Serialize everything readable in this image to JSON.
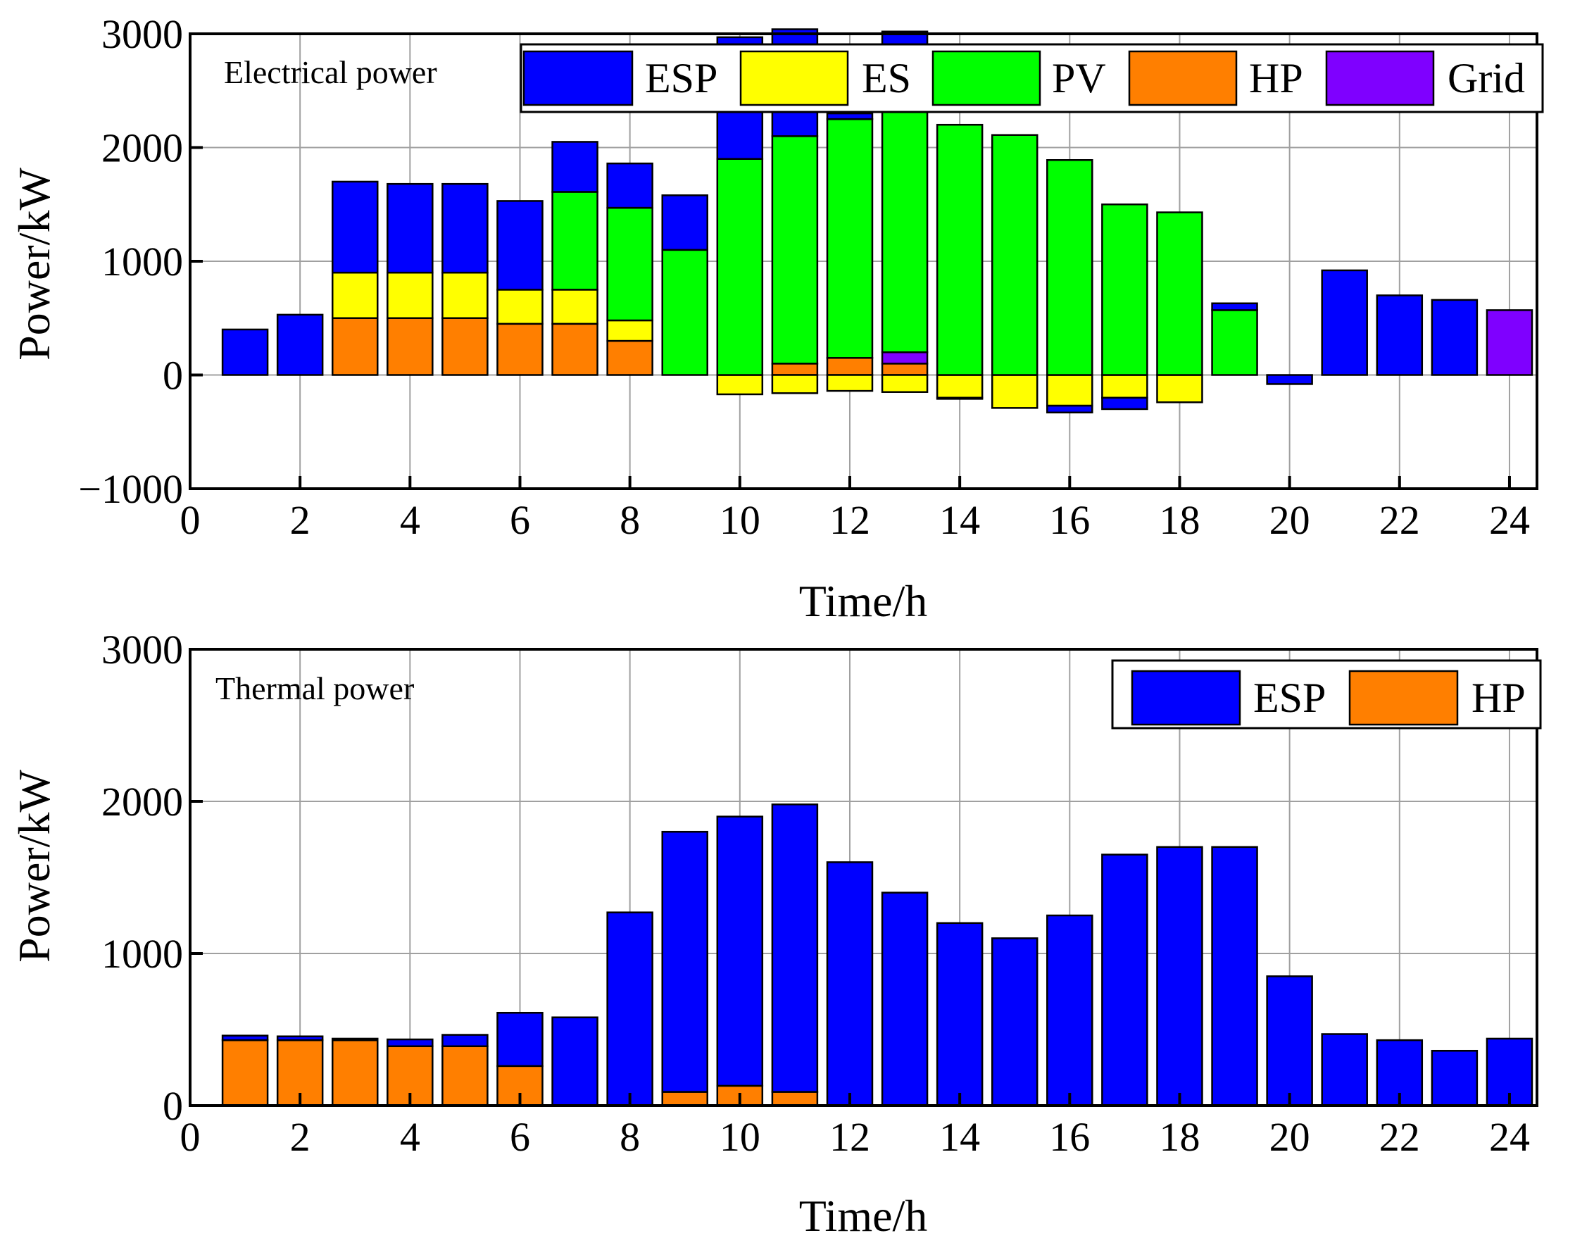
{
  "colors": {
    "ESP": "#0000ff",
    "ES": "#ffff00",
    "PV": "#00ff00",
    "HP": "#ff7f00",
    "Grid": "#7f00ff"
  },
  "chart_data": [
    {
      "type": "bar",
      "stacked": true,
      "title": "Electrical power",
      "xlabel": "Time/h",
      "ylabel": "Power/kW",
      "xlim": [
        0,
        24.5
      ],
      "ylim": [
        -1000,
        3000
      ],
      "xticks": [
        0,
        2,
        4,
        6,
        8,
        10,
        12,
        14,
        16,
        18,
        20,
        22,
        24
      ],
      "xtick_labels": [
        "0",
        "2",
        "4",
        "6",
        "8",
        "10",
        "12",
        "14",
        "16",
        "18",
        "20",
        "22",
        "24"
      ],
      "yticks": [
        -1000,
        0,
        1000,
        2000,
        3000
      ],
      "ytick_labels": [
        "−1000",
        "0",
        "1000",
        "2000",
        "3000"
      ],
      "grid": true,
      "legend_position": "top-right",
      "legend": [
        "ESP",
        "ES",
        "PV",
        "HP",
        "Grid"
      ],
      "x": [
        1,
        2,
        3,
        4,
        5,
        6,
        7,
        8,
        9,
        10,
        11,
        12,
        13,
        14,
        15,
        16,
        17,
        18,
        19,
        20,
        21,
        22,
        23,
        24
      ],
      "series": [
        {
          "name": "HP",
          "values": [
            0,
            0,
            500,
            500,
            500,
            450,
            450,
            300,
            0,
            0,
            100,
            150,
            100,
            0,
            0,
            0,
            0,
            0,
            0,
            0,
            0,
            0,
            0,
            0
          ]
        },
        {
          "name": "Grid",
          "values": [
            0,
            0,
            0,
            0,
            0,
            0,
            0,
            0,
            0,
            0,
            0,
            0,
            100,
            0,
            0,
            0,
            0,
            0,
            0,
            0,
            0,
            0,
            0,
            570
          ]
        },
        {
          "name": "ES",
          "values": [
            0,
            0,
            400,
            400,
            400,
            300,
            300,
            180,
            0,
            -170,
            -160,
            -140,
            -150,
            -200,
            -290,
            -270,
            -200,
            -240,
            0,
            0,
            0,
            0,
            0,
            0
          ]
        },
        {
          "name": "PV",
          "values": [
            0,
            0,
            0,
            0,
            0,
            0,
            860,
            990,
            1100,
            1900,
            2000,
            2100,
            2400,
            2200,
            2110,
            1890,
            1500,
            1430,
            570,
            0,
            0,
            0,
            0,
            0
          ]
        },
        {
          "name": "ESP",
          "values": [
            400,
            530,
            800,
            780,
            780,
            780,
            440,
            390,
            480,
            1070,
            940,
            50,
            420,
            -10,
            0,
            -60,
            -100,
            0,
            60,
            -80,
            920,
            700,
            660,
            0
          ]
        }
      ]
    },
    {
      "type": "bar",
      "stacked": true,
      "title": "Thermal power",
      "xlabel": "Time/h",
      "ylabel": "Power/kW",
      "xlim": [
        0,
        24.5
      ],
      "ylim": [
        0,
        3000
      ],
      "xticks": [
        0,
        2,
        4,
        6,
        8,
        10,
        12,
        14,
        16,
        18,
        20,
        22,
        24
      ],
      "xtick_labels": [
        "0",
        "2",
        "4",
        "6",
        "8",
        "10",
        "12",
        "14",
        "16",
        "18",
        "20",
        "22",
        "24"
      ],
      "yticks": [
        0,
        1000,
        2000,
        3000
      ],
      "ytick_labels": [
        "0",
        "1000",
        "2000",
        "3000"
      ],
      "grid": true,
      "legend_position": "top-right",
      "legend": [
        "ESP",
        "HP"
      ],
      "x": [
        1,
        2,
        3,
        4,
        5,
        6,
        7,
        8,
        9,
        10,
        11,
        12,
        13,
        14,
        15,
        16,
        17,
        18,
        19,
        20,
        21,
        22,
        23,
        24
      ],
      "series": [
        {
          "name": "HP",
          "values": [
            430,
            430,
            430,
            390,
            390,
            260,
            0,
            0,
            90,
            130,
            90,
            0,
            0,
            0,
            0,
            0,
            0,
            0,
            0,
            0,
            0,
            0,
            0,
            0
          ]
        },
        {
          "name": "ESP",
          "values": [
            30,
            25,
            10,
            45,
            75,
            350,
            580,
            1270,
            1710,
            1770,
            1890,
            1600,
            1400,
            1200,
            1100,
            1250,
            1650,
            1700,
            1700,
            850,
            470,
            430,
            360,
            440
          ]
        }
      ]
    }
  ]
}
